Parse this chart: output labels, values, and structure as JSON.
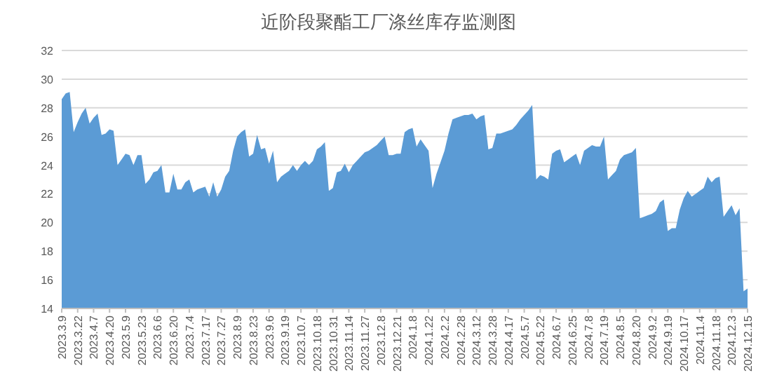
{
  "chart_data": {
    "type": "area",
    "title": "近阶段聚酯工厂涤丝库存监测图",
    "categories": [
      "2023.3.9",
      null,
      null,
      null,
      "2023.3.22",
      null,
      null,
      null,
      "2023.4.7",
      null,
      null,
      null,
      "2023.4.20",
      null,
      null,
      null,
      "2023.5.9",
      null,
      null,
      null,
      "2023.5.23",
      null,
      null,
      null,
      "2023.6.6",
      null,
      null,
      null,
      "2023.6.20",
      null,
      null,
      null,
      "2023.7.4",
      null,
      null,
      null,
      "2023.7.17",
      null,
      null,
      null,
      "2023.7.27",
      null,
      null,
      null,
      "2023.8.9",
      null,
      null,
      null,
      "2023.8.23",
      null,
      null,
      null,
      "2023.9.6",
      null,
      null,
      null,
      "2023.9.19",
      null,
      null,
      null,
      "2023.10.7",
      null,
      null,
      null,
      "2023.10.18",
      null,
      null,
      null,
      "2023.10.31",
      null,
      null,
      null,
      "2023.11.14",
      null,
      null,
      null,
      "2023.11.27",
      null,
      null,
      null,
      "2023.12.8",
      null,
      null,
      null,
      "2023.12.21",
      null,
      null,
      null,
      "2024.1.8",
      null,
      null,
      null,
      "2024.1.22",
      null,
      null,
      null,
      "2024.2.2",
      null,
      null,
      null,
      "2024.2.28",
      null,
      null,
      null,
      "2024.3.12",
      null,
      null,
      null,
      "2024.3.28",
      null,
      null,
      null,
      "2024.4.17",
      null,
      null,
      null,
      "2024.5.7",
      null,
      null,
      null,
      "2024.5.22",
      null,
      null,
      null,
      "2024.6.7",
      null,
      null,
      null,
      "2024.6.25",
      null,
      null,
      null,
      "2024.7.8",
      null,
      null,
      null,
      "2024.7.19",
      null,
      null,
      null,
      "2024.8.5",
      null,
      null,
      null,
      "2024.8.20",
      null,
      null,
      null,
      "2024.9.2",
      null,
      null,
      null,
      "2024.9.19",
      null,
      null,
      null,
      "2024.10.17",
      null,
      null,
      null,
      "2024.11.4",
      null,
      null,
      null,
      "2024.11.18",
      null,
      null,
      null,
      "2024.12.3",
      null,
      null,
      null,
      "2024.12.15"
    ],
    "values": [
      28.6,
      29.0,
      29.1,
      26.3,
      27.0,
      27.6,
      28.0,
      26.9,
      27.3,
      27.6,
      26.1,
      26.2,
      26.5,
      26.4,
      24.0,
      24.4,
      24.8,
      24.7,
      24.0,
      24.7,
      24.7,
      22.7,
      23.0,
      23.5,
      23.6,
      24.0,
      22.1,
      22.1,
      23.4,
      22.3,
      22.3,
      22.8,
      23.0,
      22.1,
      22.3,
      22.4,
      22.5,
      21.8,
      22.8,
      21.8,
      22.3,
      23.2,
      23.6,
      25.0,
      26.0,
      26.3,
      26.5,
      24.6,
      24.8,
      26.1,
      25.1,
      25.2,
      24.1,
      25.0,
      22.8,
      23.2,
      23.4,
      23.6,
      24.0,
      23.6,
      24.0,
      24.3,
      24.0,
      24.3,
      25.1,
      25.3,
      25.6,
      22.2,
      22.4,
      23.5,
      23.6,
      24.1,
      23.5,
      24.0,
      24.3,
      24.6,
      24.9,
      25.0,
      25.2,
      25.4,
      25.7,
      26.0,
      24.7,
      24.7,
      24.8,
      24.8,
      26.3,
      26.5,
      26.6,
      25.3,
      25.8,
      25.4,
      25.0,
      22.4,
      23.4,
      24.2,
      25.0,
      26.2,
      27.2,
      27.3,
      27.4,
      27.5,
      27.5,
      27.6,
      27.2,
      27.4,
      27.5,
      25.1,
      25.2,
      26.2,
      26.2,
      26.3,
      26.4,
      26.5,
      26.8,
      27.2,
      27.5,
      27.8,
      28.2,
      23.0,
      23.3,
      23.2,
      23.0,
      24.8,
      25.0,
      25.1,
      24.2,
      24.4,
      24.6,
      24.8,
      24.0,
      25.0,
      25.2,
      25.4,
      25.3,
      25.3,
      26.0,
      23.0,
      23.3,
      23.6,
      24.4,
      24.7,
      24.8,
      24.9,
      25.2,
      20.3,
      20.4,
      20.5,
      20.6,
      20.8,
      21.4,
      21.6,
      19.4,
      19.6,
      19.6,
      20.9,
      21.7,
      22.2,
      21.8,
      22.0,
      22.2,
      22.4,
      23.2,
      22.8,
      23.1,
      23.2,
      20.4,
      20.8,
      21.2,
      20.5,
      21.0,
      15.2,
      15.4
    ],
    "color": "#5b9bd5",
    "ylim": [
      14,
      32
    ],
    "yticks": [
      14,
      16,
      18,
      20,
      22,
      24,
      26,
      28,
      30,
      32
    ],
    "grid": "y"
  }
}
